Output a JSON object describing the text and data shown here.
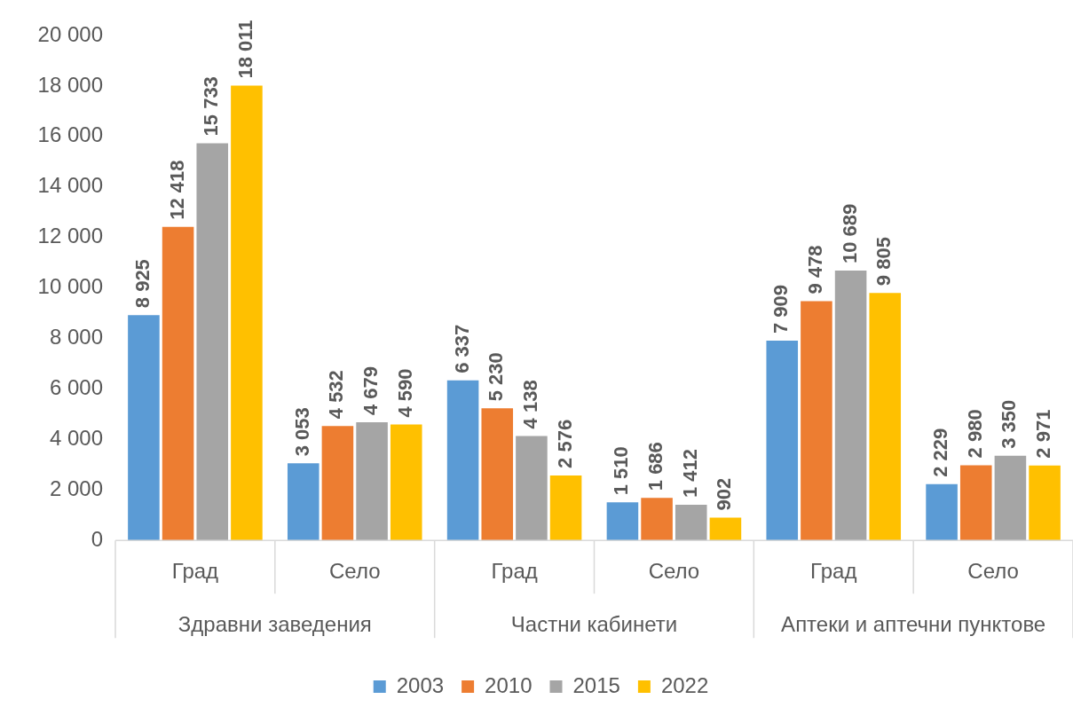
{
  "chart_data": {
    "type": "bar",
    "categories": [
      "Град",
      "Село",
      "Град",
      "Село",
      "Град",
      "Село"
    ],
    "annotations": [
      "Здравни заведения",
      "Частни кабинети",
      "Аптеки и аптечни пунктове"
    ],
    "series": [
      {
        "name": "2003",
        "color": "#5b9bd5",
        "values": [
          8925,
          3053,
          6337,
          1510,
          7909,
          2229
        ],
        "value_labels": [
          "8 925",
          "3 053",
          "6 337",
          "1 510",
          "7 909",
          "2 229"
        ]
      },
      {
        "name": "2010",
        "color": "#ed7d31",
        "values": [
          12418,
          4532,
          5230,
          1686,
          9478,
          2980
        ],
        "value_labels": [
          "12 418",
          "4 532",
          "5 230",
          "1 686",
          "9 478",
          "2 980"
        ]
      },
      {
        "name": "2015",
        "color": "#a5a5a5",
        "values": [
          15733,
          4679,
          4138,
          1412,
          10689,
          3350
        ],
        "value_labels": [
          "15 733",
          "4 679",
          "4 138",
          "1 412",
          "10 689",
          "3 350"
        ]
      },
      {
        "name": "2022",
        "color": "#ffc000",
        "values": [
          18011,
          4590,
          2576,
          902,
          9805,
          2971
        ],
        "value_labels": [
          "18 011",
          "4 590",
          "2 576",
          "902",
          "9 805",
          "2 971"
        ]
      }
    ],
    "ylim": [
      0,
      20000
    ],
    "yticks": [
      0,
      {
        "value": 2000,
        "label": "2 000"
      },
      {
        "value": 4000,
        "label": "4 000"
      },
      {
        "value": 6000,
        "label": "6 000"
      },
      {
        "value": 8000,
        "label": "8 000"
      },
      {
        "value": 10000,
        "label": "10 000"
      },
      {
        "value": 12000,
        "label": "12 000"
      },
      {
        "value": 14000,
        "label": "14 000"
      },
      {
        "value": 16000,
        "label": "16 000"
      },
      {
        "value": 18000,
        "label": "18 000"
      },
      {
        "value": 20000,
        "label": "20 000"
      }
    ],
    "grid": false,
    "legend": "bottom"
  }
}
